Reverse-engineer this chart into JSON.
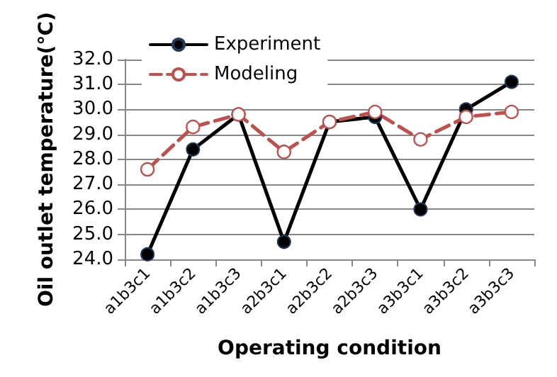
{
  "chart_data": {
    "type": "line",
    "xlabel": "Operating condition",
    "ylabel": "Oil outlet temperature(℃)",
    "categories": [
      "a1b3c1",
      "a1b3c2",
      "a1b3c3",
      "a2b3c1",
      "a2b3c2",
      "a2b3c3",
      "a3b3c1",
      "a3b3c2",
      "a3b3c3"
    ],
    "series": [
      {
        "name": "Experiment",
        "color": "#000000",
        "line_style": "solid",
        "marker": "circle",
        "values": [
          24.2,
          28.4,
          29.8,
          24.7,
          29.5,
          29.7,
          26.0,
          30.0,
          31.1
        ]
      },
      {
        "name": "Modeling",
        "color": "#c0504d",
        "line_style": "dashed",
        "marker": "circle",
        "values": [
          27.6,
          29.3,
          29.8,
          28.3,
          29.5,
          29.9,
          28.8,
          29.7,
          29.9
        ]
      }
    ],
    "ylim": [
      24,
      32
    ],
    "yticks": [
      {
        "value": 24,
        "label": "24.0"
      },
      {
        "value": 25,
        "label": "25.0"
      },
      {
        "value": 26,
        "label": "26.0"
      },
      {
        "value": 27,
        "label": "27.0"
      },
      {
        "value": 28,
        "label": "28.0"
      },
      {
        "value": 29,
        "label": "29.0"
      },
      {
        "value": 30,
        "label": "30.0"
      },
      {
        "value": 31,
        "label": "31.0"
      },
      {
        "value": 32,
        "label": "32.0"
      }
    ],
    "grid": "y",
    "legend": "top left"
  }
}
